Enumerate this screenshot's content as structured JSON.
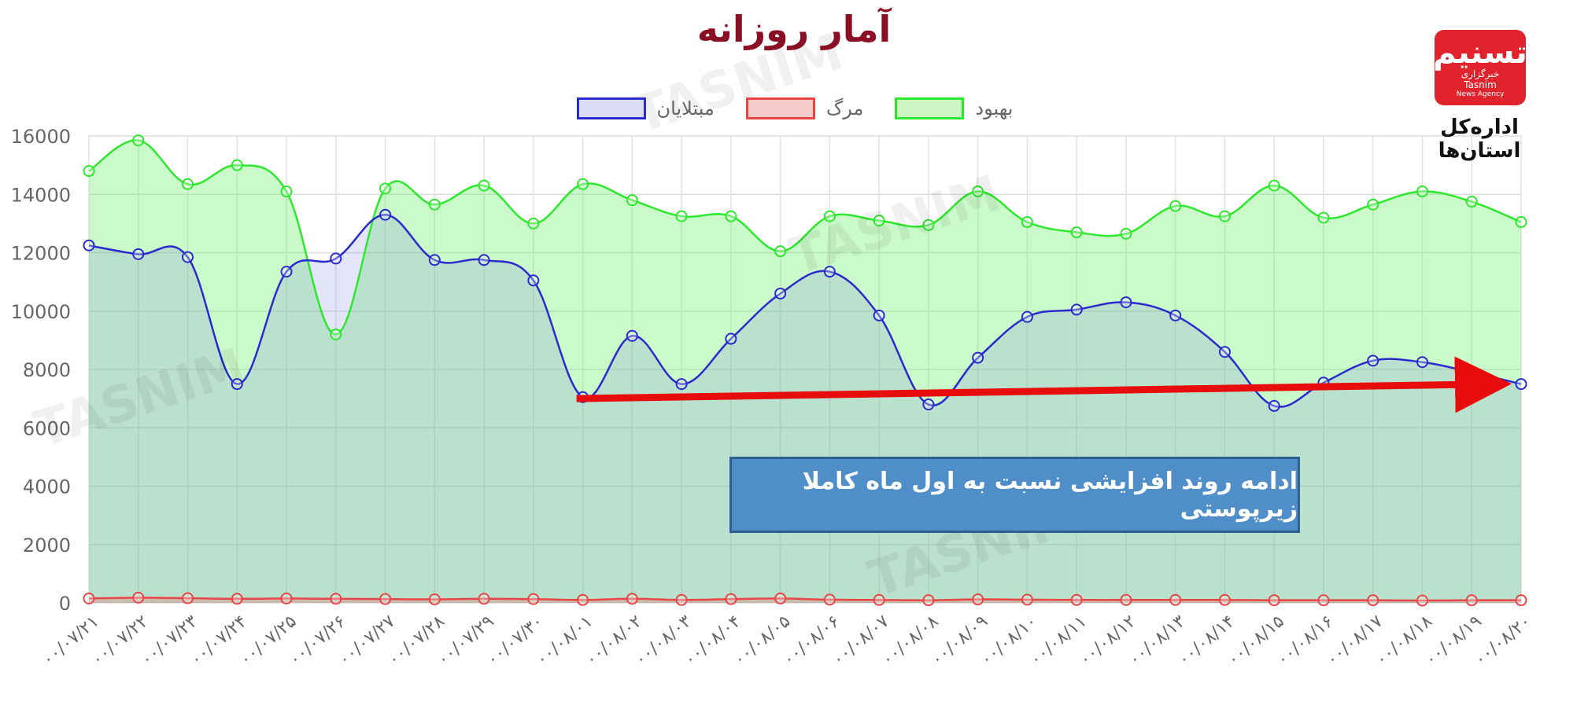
{
  "title": "آمار روزانه",
  "legend": [
    {
      "label": "بهبود",
      "fill": "#ccf7c4",
      "stroke": "#2ee82e"
    },
    {
      "label": "مرگ",
      "fill": "#f5caca",
      "stroke": "#e84646"
    },
    {
      "label": "مبتلایان",
      "fill": "#dcdcf5",
      "stroke": "#2b2bcc"
    }
  ],
  "annotation": "ادامه روند افزایشی نسبت به اول ماه کاملا زیرپوستی",
  "logo": {
    "mark": "تسنیم",
    "name_fa": "خبرگزاری",
    "name_en": "Tasnim",
    "tagline": "News Agency"
  },
  "logo_caption": "اداره‌کل استان‌ها",
  "watermark_text": "TASNIM",
  "colors": {
    "trend_arrow": "#e80d0d",
    "note_bg": "#4f8ec8",
    "title": "#8b0f24"
  },
  "chart_data": {
    "type": "area",
    "title": "آمار روزانه",
    "ylim": [
      0,
      16000
    ],
    "yticks": [
      0,
      2000,
      4000,
      6000,
      8000,
      10000,
      12000,
      14000,
      16000
    ],
    "grid": true,
    "legend_position": "top",
    "categories": [
      "۰۰/۰۷/۲۱",
      "۰۰/۰۷/۲۲",
      "۰۰/۰۷/۲۳",
      "۰۰/۰۷/۲۴",
      "۰۰/۰۷/۲۵",
      "۰۰/۰۷/۲۶",
      "۰۰/۰۷/۲۷",
      "۰۰/۰۷/۲۸",
      "۰۰/۰۷/۲۹",
      "۰۰/۰۷/۳۰",
      "۰۰/۰۸/۰۱",
      "۰۰/۰۸/۰۲",
      "۰۰/۰۸/۰۳",
      "۰۰/۰۸/۰۴",
      "۰۰/۰۸/۰۵",
      "۰۰/۰۸/۰۶",
      "۰۰/۰۸/۰۷",
      "۰۰/۰۸/۰۸",
      "۰۰/۰۸/۰۹",
      "۰۰/۰۸/۱۰",
      "۰۰/۰۸/۱۱",
      "۰۰/۰۸/۱۲",
      "۰۰/۰۸/۱۳",
      "۰۰/۰۸/۱۴",
      "۰۰/۰۸/۱۵",
      "۰۰/۰۸/۱۶",
      "۰۰/۰۸/۱۷",
      "۰۰/۰۸/۱۸",
      "۰۰/۰۸/۱۹",
      "۰۰/۰۸/۲۰"
    ],
    "series": [
      {
        "name": "بهبود",
        "color": "#2ee82e",
        "fill": "rgba(102,240,102,0.35)",
        "values": [
          14800,
          15850,
          14350,
          15000,
          14100,
          9200,
          14200,
          13650,
          14300,
          13000,
          14350,
          13800,
          13250,
          13250,
          12050,
          13250,
          13100,
          12950,
          14100,
          13050,
          12700,
          12650,
          13600,
          13250,
          14300,
          13200,
          13650,
          14100,
          13750,
          13050
        ]
      },
      {
        "name": "مبتلایان",
        "color": "#2b2bcc",
        "fill": "rgba(110,110,220,0.18)",
        "values": [
          12250,
          11950,
          11850,
          7500,
          11350,
          11800,
          13300,
          11750,
          11750,
          11050,
          7050,
          9150,
          7500,
          9050,
          10600,
          11350,
          9850,
          6800,
          8400,
          9800,
          10050,
          10300,
          9850,
          8600,
          6750,
          7550,
          8300,
          8250,
          7900,
          7500
        ]
      },
      {
        "name": "مرگ",
        "color": "#e84646",
        "fill": "rgba(240,120,120,0.35)",
        "values": [
          150,
          180,
          160,
          140,
          150,
          140,
          130,
          120,
          140,
          130,
          100,
          140,
          100,
          130,
          150,
          110,
          100,
          90,
          120,
          110,
          100,
          100,
          100,
          100,
          90,
          90,
          90,
          80,
          90,
          90
        ]
      }
    ],
    "trend_arrow": {
      "from": {
        "category": "۰۰/۰۸/۰۱",
        "y": 7000
      },
      "to": {
        "category": "۰۰/۰۸/۲۰",
        "y": 7500
      }
    }
  }
}
